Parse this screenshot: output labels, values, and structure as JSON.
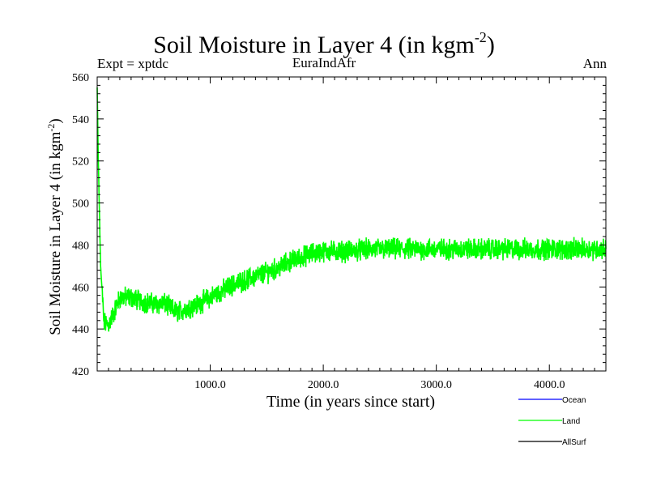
{
  "title": {
    "main": "Soil Moisture in Layer 4 (in kgm",
    "sup": "-2",
    "close": ")"
  },
  "subtitles": {
    "left": "Expt = xptdc",
    "center": "EuraIndAfr",
    "right": "Ann"
  },
  "colors": {
    "ocean": "#0000ff",
    "land": "#00ff00",
    "allsurf": "#000000"
  },
  "chart_data": {
    "type": "line",
    "title": "Soil Moisture in Layer 4 (in kgm-2)",
    "xlabel": "Time (in years since start)",
    "ylabel": "Soil Moisture in Layer 4 (in kgm-2)",
    "xlim": [
      0,
      4500
    ],
    "ylim": [
      420,
      560
    ],
    "x_ticks": [
      1000,
      2000,
      3000,
      4000
    ],
    "x_tick_labels": [
      "1000.0",
      "2000.0",
      "3000.0",
      "4000.0"
    ],
    "y_ticks": [
      420,
      440,
      460,
      480,
      500,
      520,
      540,
      560
    ],
    "y_tick_labels": [
      "420",
      "440",
      "460",
      "480",
      "500",
      "520",
      "540",
      "560"
    ],
    "grid": false,
    "legend_position": "bottom-right",
    "legend": [
      "Ocean",
      "Land",
      "AllSurf"
    ],
    "series": [
      {
        "name": "Land",
        "color": "#00ff00",
        "x": [
          0,
          10,
          30,
          60,
          100,
          150,
          200,
          300,
          400,
          500,
          600,
          700,
          800,
          900,
          1000,
          1100,
          1200,
          1300,
          1400,
          1500,
          1600,
          1700,
          1800,
          1900,
          2000,
          2200,
          2400,
          2600,
          2800,
          3000,
          3200,
          3400,
          3600,
          3800,
          4000,
          4200,
          4400,
          4500
        ],
        "y": [
          555,
          520,
          470,
          443,
          442,
          448,
          455,
          455,
          453,
          452,
          452,
          448,
          450,
          452,
          455,
          458,
          461,
          463,
          465,
          467,
          469,
          472,
          474,
          476,
          477,
          477,
          478,
          478,
          478,
          478,
          478,
          478,
          478,
          478,
          478,
          478,
          478,
          478
        ],
        "noise_amplitude": 4
      },
      {
        "name": "Ocean",
        "color": "#0000ff",
        "x": [],
        "y": []
      },
      {
        "name": "AllSurf",
        "color": "#000000",
        "x": [],
        "y": []
      }
    ]
  }
}
